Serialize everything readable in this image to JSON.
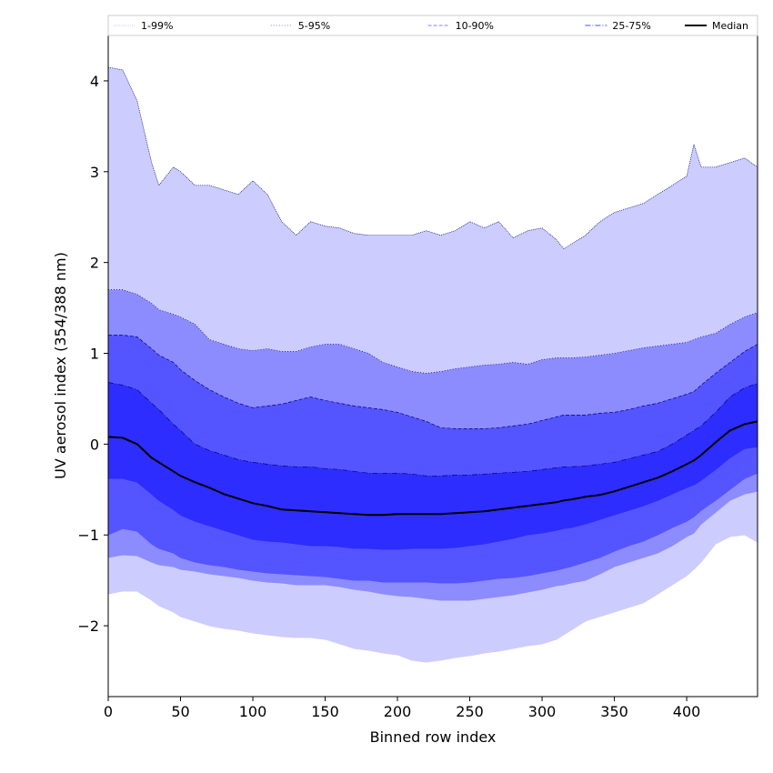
{
  "chart_data": {
    "type": "area",
    "xlabel": "Binned row index",
    "ylabel": "UV aerosol index (354/388 nm)",
    "xlim": [
      0,
      449
    ],
    "ylim": [
      -2.78,
      4.5
    ],
    "xticks": [
      0,
      50,
      100,
      150,
      200,
      250,
      300,
      350,
      400
    ],
    "yticks": [
      -2,
      -1,
      0,
      1,
      2,
      3,
      4
    ],
    "grid": false,
    "legend": {
      "placement": "top",
      "entries": [
        {
          "label": "1-99%",
          "color": "#ccccff",
          "style": "dotted-thin"
        },
        {
          "label": "5-95%",
          "color": "#8080ff",
          "style": "dotted"
        },
        {
          "label": "10-90%",
          "color": "#8080ff",
          "style": "dashed"
        },
        {
          "label": "25-75%",
          "color": "#4d4dff",
          "style": "dashdot"
        },
        {
          "label": "Median",
          "color": "#000000",
          "style": "solid"
        }
      ]
    },
    "x": [
      0,
      10,
      20,
      30,
      35,
      45,
      50,
      60,
      70,
      80,
      90,
      100,
      110,
      120,
      130,
      140,
      150,
      160,
      170,
      180,
      190,
      200,
      210,
      220,
      230,
      240,
      250,
      260,
      270,
      280,
      290,
      300,
      310,
      315,
      320,
      330,
      340,
      350,
      360,
      370,
      380,
      390,
      400,
      405,
      410,
      420,
      430,
      440,
      449
    ],
    "bands": [
      {
        "name": "1-99%",
        "color": "#ccccff",
        "upper": [
          4.15,
          4.12,
          3.78,
          3.1,
          2.85,
          3.05,
          3.0,
          2.85,
          2.85,
          2.8,
          2.75,
          2.9,
          2.75,
          2.45,
          2.3,
          2.45,
          2.4,
          2.38,
          2.32,
          2.3,
          2.3,
          2.3,
          2.3,
          2.35,
          2.3,
          2.35,
          2.45,
          2.38,
          2.45,
          2.27,
          2.35,
          2.38,
          2.25,
          2.15,
          2.2,
          2.3,
          2.45,
          2.55,
          2.6,
          2.65,
          2.75,
          2.85,
          2.95,
          3.3,
          3.05,
          3.05,
          3.1,
          3.15,
          3.05
        ],
        "lower": [
          -1.65,
          -1.62,
          -1.62,
          -1.72,
          -1.78,
          -1.85,
          -1.9,
          -1.95,
          -2.0,
          -2.03,
          -2.05,
          -2.08,
          -2.1,
          -2.12,
          -2.13,
          -2.13,
          -2.15,
          -2.2,
          -2.25,
          -2.27,
          -2.3,
          -2.32,
          -2.38,
          -2.4,
          -2.38,
          -2.35,
          -2.33,
          -2.3,
          -2.28,
          -2.25,
          -2.22,
          -2.2,
          -2.15,
          -2.1,
          -2.05,
          -1.95,
          -1.9,
          -1.85,
          -1.8,
          -1.75,
          -1.65,
          -1.55,
          -1.45,
          -1.38,
          -1.3,
          -1.1,
          -1.02,
          -1.0,
          -1.08
        ]
      },
      {
        "name": "5-95%",
        "color": "#8c8cff",
        "upper": [
          1.7,
          1.7,
          1.65,
          1.55,
          1.48,
          1.43,
          1.4,
          1.32,
          1.15,
          1.1,
          1.05,
          1.03,
          1.05,
          1.02,
          1.02,
          1.07,
          1.1,
          1.1,
          1.05,
          1.0,
          0.9,
          0.85,
          0.8,
          0.78,
          0.8,
          0.83,
          0.85,
          0.87,
          0.88,
          0.9,
          0.88,
          0.93,
          0.95,
          0.95,
          0.95,
          0.96,
          0.98,
          1.0,
          1.03,
          1.06,
          1.08,
          1.1,
          1.12,
          1.15,
          1.18,
          1.22,
          1.32,
          1.4,
          1.45
        ],
        "lower": [
          -1.25,
          -1.22,
          -1.23,
          -1.3,
          -1.33,
          -1.35,
          -1.38,
          -1.4,
          -1.43,
          -1.45,
          -1.47,
          -1.5,
          -1.52,
          -1.53,
          -1.55,
          -1.55,
          -1.55,
          -1.57,
          -1.6,
          -1.62,
          -1.65,
          -1.67,
          -1.68,
          -1.7,
          -1.72,
          -1.72,
          -1.72,
          -1.7,
          -1.68,
          -1.66,
          -1.63,
          -1.6,
          -1.56,
          -1.55,
          -1.53,
          -1.5,
          -1.43,
          -1.35,
          -1.3,
          -1.25,
          -1.2,
          -1.12,
          -1.02,
          -0.98,
          -0.88,
          -0.75,
          -0.62,
          -0.55,
          -0.52
        ]
      },
      {
        "name": "10-90%",
        "color": "#5555ff",
        "upper": [
          1.2,
          1.2,
          1.18,
          1.05,
          0.98,
          0.9,
          0.82,
          0.7,
          0.6,
          0.52,
          0.45,
          0.4,
          0.42,
          0.44,
          0.48,
          0.52,
          0.48,
          0.45,
          0.42,
          0.4,
          0.38,
          0.35,
          0.3,
          0.25,
          0.18,
          0.17,
          0.17,
          0.17,
          0.18,
          0.2,
          0.22,
          0.26,
          0.3,
          0.32,
          0.32,
          0.32,
          0.34,
          0.35,
          0.38,
          0.42,
          0.45,
          0.5,
          0.55,
          0.58,
          0.65,
          0.78,
          0.9,
          1.02,
          1.1
        ],
        "lower": [
          -1.0,
          -0.93,
          -0.96,
          -1.1,
          -1.15,
          -1.2,
          -1.25,
          -1.3,
          -1.33,
          -1.35,
          -1.38,
          -1.4,
          -1.42,
          -1.43,
          -1.44,
          -1.45,
          -1.46,
          -1.48,
          -1.5,
          -1.5,
          -1.52,
          -1.52,
          -1.52,
          -1.52,
          -1.53,
          -1.53,
          -1.52,
          -1.5,
          -1.48,
          -1.47,
          -1.45,
          -1.42,
          -1.39,
          -1.37,
          -1.35,
          -1.3,
          -1.25,
          -1.18,
          -1.12,
          -1.07,
          -1.0,
          -0.92,
          -0.85,
          -0.8,
          -0.73,
          -0.62,
          -0.5,
          -0.38,
          -0.32
        ]
      },
      {
        "name": "25-75%",
        "color": "#2d2dff",
        "upper": [
          0.68,
          0.65,
          0.6,
          0.45,
          0.38,
          0.22,
          0.15,
          0.0,
          -0.07,
          -0.12,
          -0.17,
          -0.2,
          -0.22,
          -0.24,
          -0.25,
          -0.25,
          -0.27,
          -0.28,
          -0.3,
          -0.32,
          -0.32,
          -0.32,
          -0.33,
          -0.35,
          -0.35,
          -0.34,
          -0.34,
          -0.33,
          -0.32,
          -0.31,
          -0.3,
          -0.28,
          -0.26,
          -0.25,
          -0.25,
          -0.24,
          -0.22,
          -0.2,
          -0.16,
          -0.12,
          -0.08,
          0.0,
          0.1,
          0.15,
          0.2,
          0.35,
          0.52,
          0.62,
          0.67
        ],
        "lower": [
          -0.38,
          -0.38,
          -0.42,
          -0.55,
          -0.62,
          -0.72,
          -0.78,
          -0.85,
          -0.9,
          -0.95,
          -1.0,
          -1.05,
          -1.07,
          -1.08,
          -1.1,
          -1.12,
          -1.12,
          -1.13,
          -1.15,
          -1.15,
          -1.16,
          -1.16,
          -1.15,
          -1.15,
          -1.15,
          -1.14,
          -1.12,
          -1.1,
          -1.07,
          -1.04,
          -1.0,
          -0.98,
          -0.95,
          -0.93,
          -0.92,
          -0.88,
          -0.83,
          -0.78,
          -0.73,
          -0.68,
          -0.62,
          -0.55,
          -0.48,
          -0.45,
          -0.4,
          -0.28,
          -0.15,
          -0.05,
          -0.03
        ]
      }
    ],
    "median": {
      "name": "Median",
      "color": "#000000",
      "values": [
        0.08,
        0.07,
        0.0,
        -0.15,
        -0.2,
        -0.3,
        -0.35,
        -0.42,
        -0.48,
        -0.55,
        -0.6,
        -0.65,
        -0.68,
        -0.72,
        -0.73,
        -0.74,
        -0.75,
        -0.76,
        -0.77,
        -0.78,
        -0.78,
        -0.77,
        -0.77,
        -0.77,
        -0.77,
        -0.76,
        -0.75,
        -0.74,
        -0.72,
        -0.7,
        -0.68,
        -0.66,
        -0.64,
        -0.62,
        -0.61,
        -0.58,
        -0.56,
        -0.52,
        -0.47,
        -0.42,
        -0.37,
        -0.3,
        -0.22,
        -0.18,
        -0.12,
        0.02,
        0.15,
        0.22,
        0.25
      ]
    }
  }
}
